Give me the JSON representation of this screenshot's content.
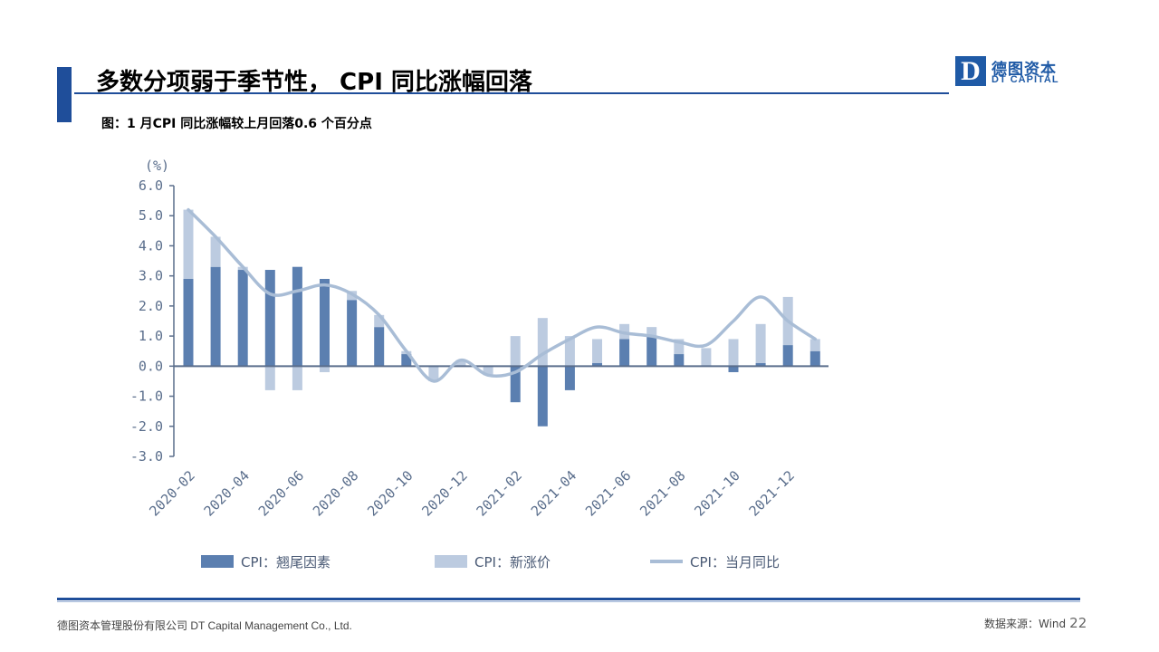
{
  "header": {
    "title": "多数分项弱于季节性， CPI 同比涨幅回落",
    "subtitle": "图：1 月CPI 同比涨幅较上月回落0.6 个百分点"
  },
  "logo": {
    "mark": "D",
    "cn": "德图资本",
    "en": "DT CAPITAL"
  },
  "footer": {
    "company": "德图资本管理股份有限公司  DT Capital Management  Co., Ltd.",
    "source": "数据来源：Wind",
    "page": "22"
  },
  "colors": {
    "accent": "#1f4e9a",
    "carryover": "#5b7fb0",
    "new_price": "#bccbe0",
    "line": "#a9bdd6",
    "axis": "#5a6e8c"
  },
  "chart_data": {
    "type": "bar",
    "unit_label": "(%)",
    "ylim": [
      -3.0,
      6.0
    ],
    "yticks": [
      "6.0",
      "5.0",
      "4.0",
      "3.0",
      "2.0",
      "1.0",
      "0.0",
      "-1.0",
      "-2.0",
      "-3.0"
    ],
    "xtick_labels": [
      "2020-02",
      "2020-04",
      "2020-06",
      "2020-08",
      "2020-10",
      "2020-12",
      "2021-02",
      "2021-04",
      "2021-06",
      "2021-08",
      "2021-10",
      "2021-12"
    ],
    "categories": [
      "2020-02",
      "2020-03",
      "2020-04",
      "2020-05",
      "2020-06",
      "2020-07",
      "2020-08",
      "2020-09",
      "2020-10",
      "2020-11",
      "2020-12",
      "2021-01",
      "2021-02",
      "2021-03",
      "2021-04",
      "2021-05",
      "2021-06",
      "2021-07",
      "2021-08",
      "2021-09",
      "2021-10",
      "2021-11",
      "2021-12",
      "2022-01"
    ],
    "series": [
      {
        "name": "CPI：翘尾因素",
        "kind": "bar",
        "values": [
          2.9,
          3.3,
          3.2,
          3.2,
          3.3,
          2.9,
          2.2,
          1.3,
          0.4,
          0.0,
          0.0,
          0.0,
          -1.2,
          -2.0,
          -0.8,
          0.1,
          0.9,
          1.0,
          0.4,
          0.0,
          -0.2,
          0.1,
          0.7,
          0.5
        ]
      },
      {
        "name": "CPI：新涨价",
        "kind": "bar",
        "values": [
          2.3,
          1.0,
          0.1,
          -0.8,
          -0.8,
          -0.2,
          0.3,
          0.4,
          0.1,
          -0.5,
          0.2,
          -0.3,
          1.0,
          1.6,
          1.0,
          0.8,
          0.5,
          0.3,
          0.5,
          0.6,
          0.9,
          1.3,
          1.6,
          0.4
        ]
      },
      {
        "name": "CPI：当月同比",
        "kind": "line",
        "values": [
          5.2,
          4.3,
          3.3,
          2.4,
          2.5,
          2.7,
          2.4,
          1.7,
          0.5,
          -0.5,
          0.2,
          -0.3,
          -0.2,
          0.4,
          0.9,
          1.3,
          1.1,
          1.0,
          0.8,
          0.7,
          1.5,
          2.3,
          1.5,
          0.9
        ]
      }
    ]
  }
}
